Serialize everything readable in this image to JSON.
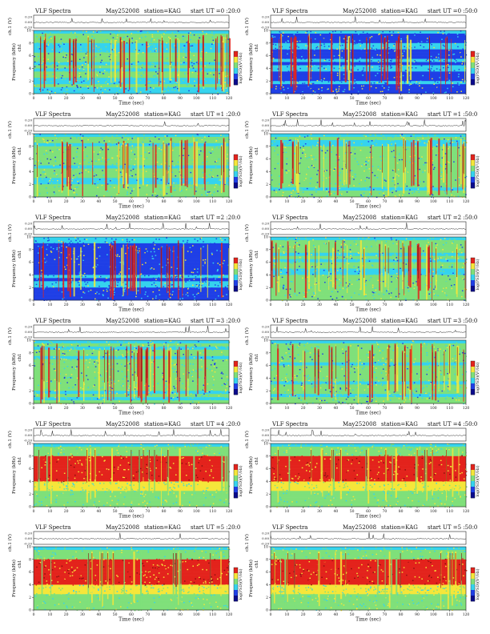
{
  "page": {
    "date": "May252008"
  },
  "labels": {
    "title": "VLF Spectra",
    "station": "station=KAG",
    "start_prefix": "start  UT =",
    "waveform_ylabel": "ch.1 (V)",
    "spectrum_ylabel": "Frequency  (kHz)",
    "xlabel": "Time  (sec)",
    "colorbar_label": "log(PSD)(V²/Hz)",
    "ch_label": "ch1"
  },
  "colors": {
    "blue": "#1f3fe6",
    "cyan": "#35d3ee",
    "green": "#7fe07a",
    "yellow": "#f5e63a",
    "red": "#e3231c",
    "dark_red": "#8a1010",
    "navy": "#0a0a8c"
  },
  "chart_data": [
    {
      "type": "heatmap",
      "panel": "p1",
      "start": "0 :20:0",
      "xlim": [
        0,
        120
      ],
      "ylim_freq_khz": [
        0,
        10
      ],
      "ylim_wave_v": [
        -0.2,
        0.2
      ],
      "xticks": [
        "0",
        "10",
        "20",
        "30",
        "40",
        "50",
        "60",
        "70",
        "80",
        "90",
        "100",
        "110",
        "120"
      ],
      "yticks": [
        "0",
        "2",
        "4",
        "6",
        "8",
        "10"
      ],
      "wave_ticks": [
        "0.20",
        "0.00",
        "-0.20"
      ],
      "dominant_band": "broadband green with red/yellow spikes"
    },
    {
      "type": "heatmap",
      "panel": "p2",
      "start": "0 :50:0",
      "xlim": [
        0,
        120
      ],
      "ylim_freq_khz": [
        0,
        10
      ],
      "ylim_wave_v": [
        -0.2,
        0.2
      ],
      "xticks": [
        "0",
        "10",
        "20",
        "30",
        "40",
        "50",
        "60",
        "70",
        "80",
        "90",
        "100",
        "110",
        "120"
      ],
      "yticks": [
        "0",
        "2",
        "4",
        "6",
        "8",
        "10"
      ],
      "wave_ticks": [
        "0.20",
        "0.00",
        "-0.20"
      ],
      "dominant_band": "broadband blue/cyan with red spikes"
    },
    {
      "type": "heatmap",
      "panel": "p3",
      "start": "1 :20:0",
      "xlim": [
        0,
        120
      ],
      "ylim_freq_khz": [
        0,
        10
      ],
      "ylim_wave_v": [
        -0.2,
        0.2
      ],
      "xticks": [
        "0",
        "10",
        "20",
        "30",
        "40",
        "50",
        "60",
        "70",
        "80",
        "90",
        "100",
        "110",
        "120"
      ],
      "yticks": [
        "0",
        "2",
        "4",
        "6",
        "8",
        "10"
      ],
      "wave_ticks": [
        "0.20",
        "0.00",
        "-0.20"
      ],
      "dominant_band": "broadband green/cyan with red spikes"
    },
    {
      "type": "heatmap",
      "panel": "p4",
      "start": "1 :50:0",
      "xlim": [
        0,
        120
      ],
      "ylim_freq_khz": [
        0,
        10
      ],
      "ylim_wave_v": [
        -0.2,
        0.2
      ],
      "xticks": [
        "0",
        "10",
        "20",
        "30",
        "40",
        "50",
        "60",
        "70",
        "80",
        "90",
        "100",
        "110",
        "120"
      ],
      "yticks": [
        "0",
        "2",
        "4",
        "6",
        "8",
        "10"
      ],
      "wave_ticks": [
        "0.20",
        "0.00",
        "-0.20"
      ],
      "dominant_band": "broadband green/cyan with red spikes"
    },
    {
      "type": "heatmap",
      "panel": "p5",
      "start": "2 :20:0",
      "xlim": [
        0,
        120
      ],
      "ylim_freq_khz": [
        0,
        10
      ],
      "ylim_wave_v": [
        -0.2,
        0.2
      ],
      "xticks": [
        "0",
        "10",
        "20",
        "30",
        "40",
        "50",
        "60",
        "70",
        "80",
        "90",
        "100",
        "110",
        "120"
      ],
      "yticks": [
        "0",
        "2",
        "4",
        "6",
        "8",
        "10"
      ],
      "wave_ticks": [
        "0.20",
        "0.00",
        "-0.20"
      ],
      "dominant_band": "broadband cyan/blue with red spikes"
    },
    {
      "type": "heatmap",
      "panel": "p6",
      "start": "2 :50:0",
      "xlim": [
        0,
        120
      ],
      "ylim_freq_khz": [
        0,
        10
      ],
      "ylim_wave_v": [
        -0.2,
        0.2
      ],
      "xticks": [
        "0",
        "10",
        "20",
        "30",
        "40",
        "50",
        "60",
        "70",
        "80",
        "90",
        "100",
        "110",
        "120"
      ],
      "yticks": [
        "0",
        "2",
        "4",
        "6",
        "8",
        "10"
      ],
      "wave_ticks": [
        "0.20",
        "0.00",
        "-0.20"
      ],
      "dominant_band": "broadband green with red spikes"
    },
    {
      "type": "heatmap",
      "panel": "p7",
      "start": "3 :20:0",
      "xlim": [
        0,
        120
      ],
      "ylim_freq_khz": [
        0,
        10
      ],
      "ylim_wave_v": [
        -0.2,
        0.2
      ],
      "xticks": [
        "0",
        "10",
        "20",
        "30",
        "40",
        "50",
        "60",
        "70",
        "80",
        "90",
        "100",
        "110",
        "120"
      ],
      "yticks": [
        "0",
        "2",
        "4",
        "6",
        "8",
        "10"
      ],
      "wave_ticks": [
        "0.20",
        "0.00",
        "-0.20"
      ],
      "dominant_band": "broadband green/cyan with red spikes"
    },
    {
      "type": "heatmap",
      "panel": "p8",
      "start": "3 :50:0",
      "xlim": [
        0,
        120
      ],
      "ylim_freq_khz": [
        0,
        10
      ],
      "ylim_wave_v": [
        -0.2,
        0.2
      ],
      "xticks": [
        "0",
        "10",
        "20",
        "30",
        "40",
        "50",
        "60",
        "70",
        "80",
        "90",
        "100",
        "110",
        "120"
      ],
      "yticks": [
        "0",
        "2",
        "4",
        "6",
        "8",
        "10"
      ],
      "wave_ticks": [
        "0.20",
        "0.00",
        "-0.20"
      ],
      "dominant_band": "broadband green with red/yellow spikes"
    },
    {
      "type": "heatmap",
      "panel": "p9",
      "start": "4 :20:0",
      "xlim": [
        0,
        120
      ],
      "ylim_freq_khz": [
        0,
        10
      ],
      "ylim_wave_v": [
        -0.2,
        0.2
      ],
      "xticks": [
        "0",
        "10",
        "20",
        "30",
        "40",
        "50",
        "60",
        "70",
        "80",
        "90",
        "100",
        "110",
        "120"
      ],
      "yticks": [
        "0",
        "2",
        "4",
        "6",
        "8",
        "10"
      ],
      "wave_ticks": [
        "0.20",
        "0.00",
        "-0.20"
      ],
      "dominant_band": "red band 4-8 kHz, green below"
    },
    {
      "type": "heatmap",
      "panel": "p10",
      "start": "4 :50:0",
      "xlim": [
        0,
        120
      ],
      "ylim_freq_khz": [
        0,
        10
      ],
      "ylim_wave_v": [
        -0.2,
        0.2
      ],
      "xticks": [
        "0",
        "10",
        "20",
        "30",
        "40",
        "50",
        "60",
        "70",
        "80",
        "90",
        "100",
        "110",
        "120"
      ],
      "yticks": [
        "0",
        "2",
        "4",
        "6",
        "8",
        "10"
      ],
      "wave_ticks": [
        "0.20",
        "0.00",
        "-0.20"
      ],
      "dominant_band": "red band 4-8 kHz, green below"
    },
    {
      "type": "heatmap",
      "panel": "p11",
      "start": "5 :20:0",
      "xlim": [
        0,
        120
      ],
      "ylim_freq_khz": [
        0,
        10
      ],
      "ylim_wave_v": [
        -0.2,
        0.2
      ],
      "xticks": [
        "0",
        "10",
        "20",
        "30",
        "40",
        "50",
        "60",
        "70",
        "80",
        "90",
        "100",
        "110",
        "120"
      ],
      "yticks": [
        "0",
        "2",
        "4",
        "6",
        "8",
        "10"
      ],
      "wave_ticks": [
        "0.20",
        "0.00",
        "-0.20"
      ],
      "dominant_band": "red band 4-8 kHz, green below"
    },
    {
      "type": "heatmap",
      "panel": "p12",
      "start": "5 :50:0",
      "xlim": [
        0,
        120
      ],
      "ylim_freq_khz": [
        0,
        10
      ],
      "ylim_wave_v": [
        -0.2,
        0.2
      ],
      "xticks": [
        "0",
        "10",
        "20",
        "30",
        "40",
        "50",
        "60",
        "70",
        "80",
        "90",
        "100",
        "110",
        "120"
      ],
      "yticks": [
        "0",
        "2",
        "4",
        "6",
        "8",
        "10"
      ],
      "wave_ticks": [
        "0.20",
        "0.00",
        "-0.20"
      ],
      "dominant_band": "red band 4-8 kHz, green below"
    }
  ]
}
